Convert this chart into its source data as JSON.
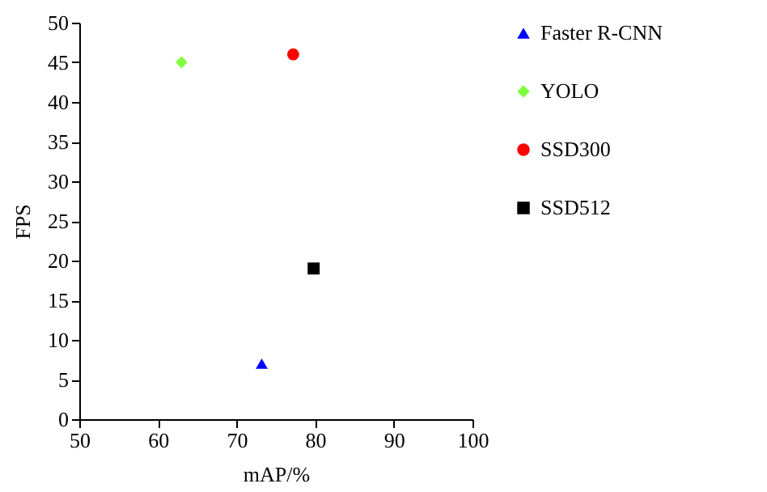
{
  "chart_data": {
    "type": "scatter",
    "xlabel": "mAP/%",
    "ylabel": "FPS",
    "xlim": [
      50,
      100
    ],
    "xticks": [
      50,
      60,
      70,
      80,
      90,
      100
    ],
    "ylim": [
      0,
      50
    ],
    "yticks": [
      0,
      5,
      10,
      15,
      20,
      25,
      30,
      35,
      40,
      45,
      50
    ],
    "grid": false,
    "legend": "right",
    "series": [
      {
        "name": "Faster R-CNN",
        "color": "#0000ff",
        "marker": "triangle",
        "x": [
          73.2
        ],
        "values": [
          7
        ]
      },
      {
        "name": "YOLO",
        "color": "#80ff40",
        "marker": "diamond",
        "x": [
          63
        ],
        "values": [
          45
        ]
      },
      {
        "name": "SSD300",
        "color": "#ff0000",
        "marker": "circle",
        "x": [
          77.2
        ],
        "values": [
          46
        ]
      },
      {
        "name": "SSD512",
        "color": "#000000",
        "marker": "square",
        "x": [
          79.8
        ],
        "values": [
          19
        ]
      }
    ]
  }
}
